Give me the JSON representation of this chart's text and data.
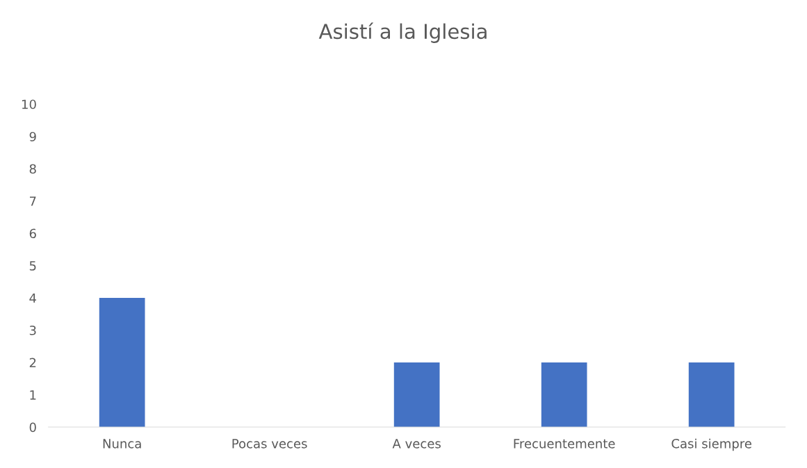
{
  "chart_data": {
    "type": "bar",
    "title": "Asistí a la Iglesia",
    "categories": [
      "Nunca",
      "Pocas veces",
      "A veces",
      "Frecuentemente",
      "Casi siempre"
    ],
    "values": [
      4,
      0,
      2,
      2,
      2
    ],
    "color": "#4472c4",
    "ylim": [
      0,
      10
    ],
    "yticks": [
      0,
      1,
      2,
      3,
      4,
      5,
      6,
      7,
      8,
      9,
      10
    ],
    "grid": false
  }
}
